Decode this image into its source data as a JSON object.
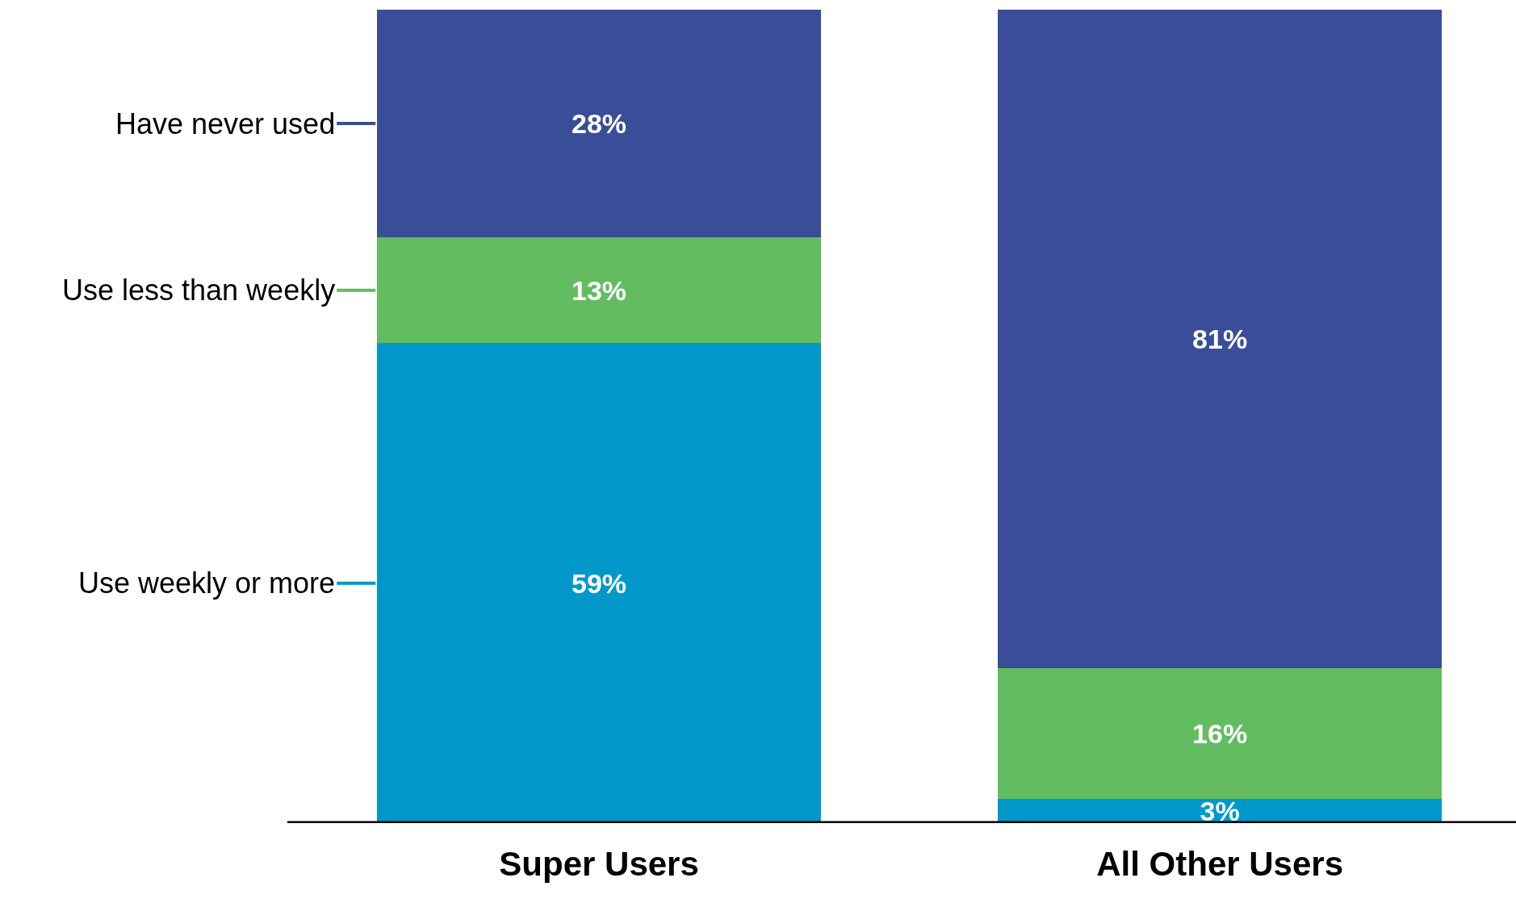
{
  "chart_data": {
    "type": "bar",
    "stacked": true,
    "legend": "left",
    "categories": [
      "Super Users",
      "All Other Users"
    ],
    "series": [
      {
        "name": "Use weekly or more",
        "color": "#0098cb",
        "values": [
          59,
          3
        ],
        "value_labels": [
          "59%",
          "3%"
        ]
      },
      {
        "name": "Use less than weekly",
        "color": "#63bc60",
        "values": [
          13,
          16
        ],
        "value_labels": [
          "13%",
          "16%"
        ]
      },
      {
        "name": "Have never used",
        "color": "#3a4d98",
        "values": [
          28,
          81
        ],
        "value_labels": [
          "28%",
          "81%"
        ]
      }
    ]
  }
}
